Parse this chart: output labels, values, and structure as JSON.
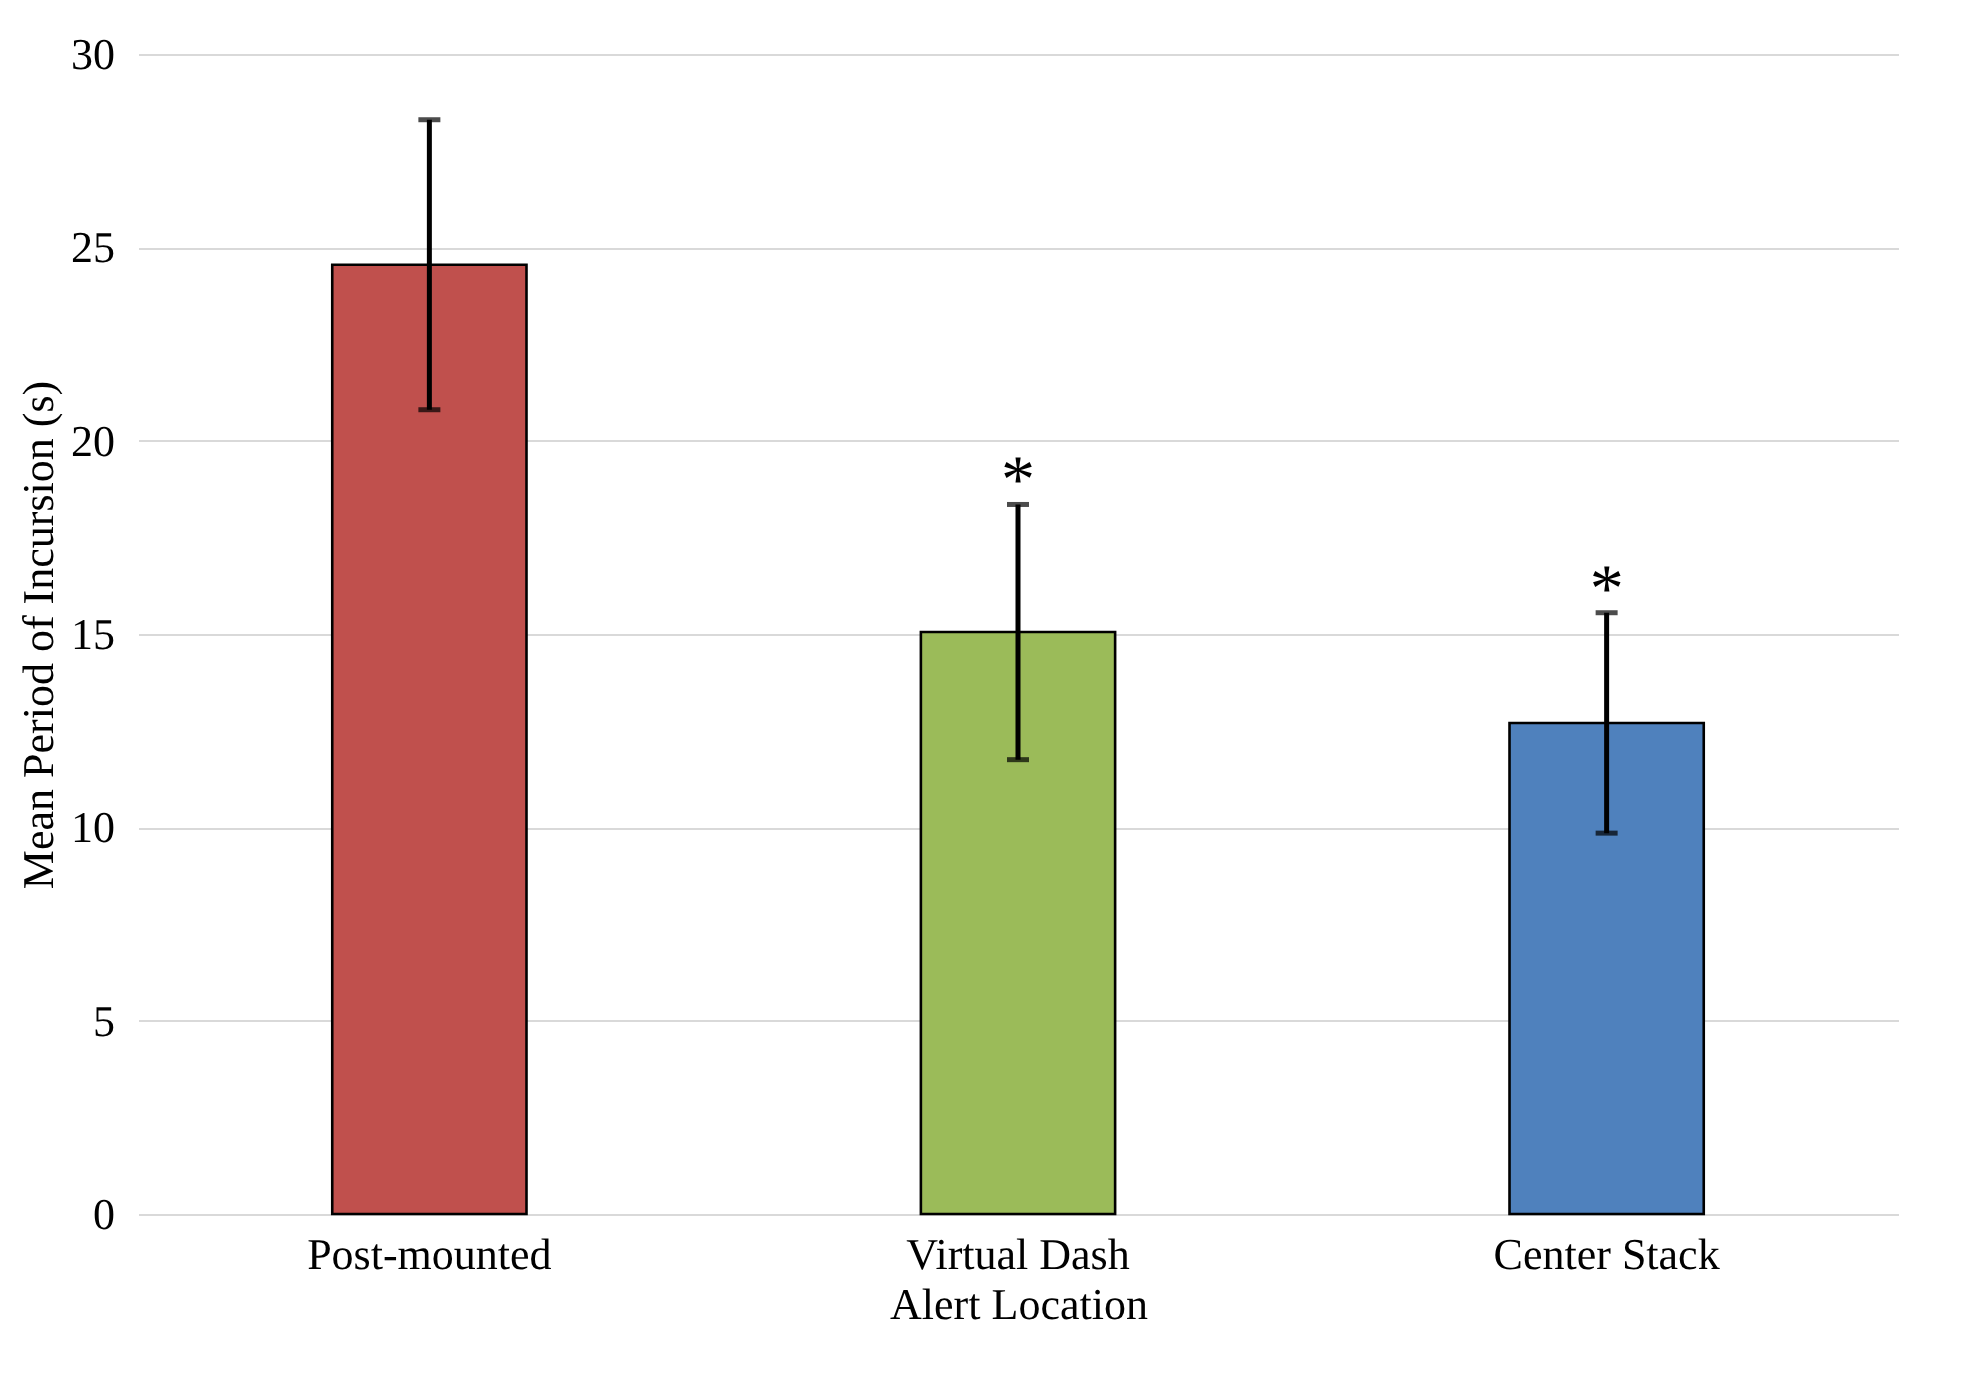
{
  "chart_data": {
    "type": "bar",
    "xlabel": "Alert Location",
    "ylabel": "Mean Period of Incursion (s)",
    "categories": [
      "Post-mounted",
      "Virtual Dash",
      "Center Stack"
    ],
    "values": [
      24.55,
      15.05,
      12.7
    ],
    "errors": [
      3.75,
      3.3,
      2.85
    ],
    "colors": [
      "#c0504d",
      "#9bbb59",
      "#4f81bd"
    ],
    "ylim": [
      0,
      30
    ],
    "yticks": [
      0,
      5,
      10,
      15,
      20,
      25,
      30
    ],
    "grid": "y",
    "legend": false,
    "annotations": [
      {
        "text": "*",
        "x": "Virtual Dash",
        "y": 18.35
      },
      {
        "text": "*",
        "x": "Center Stack",
        "y": 15.55
      }
    ]
  }
}
